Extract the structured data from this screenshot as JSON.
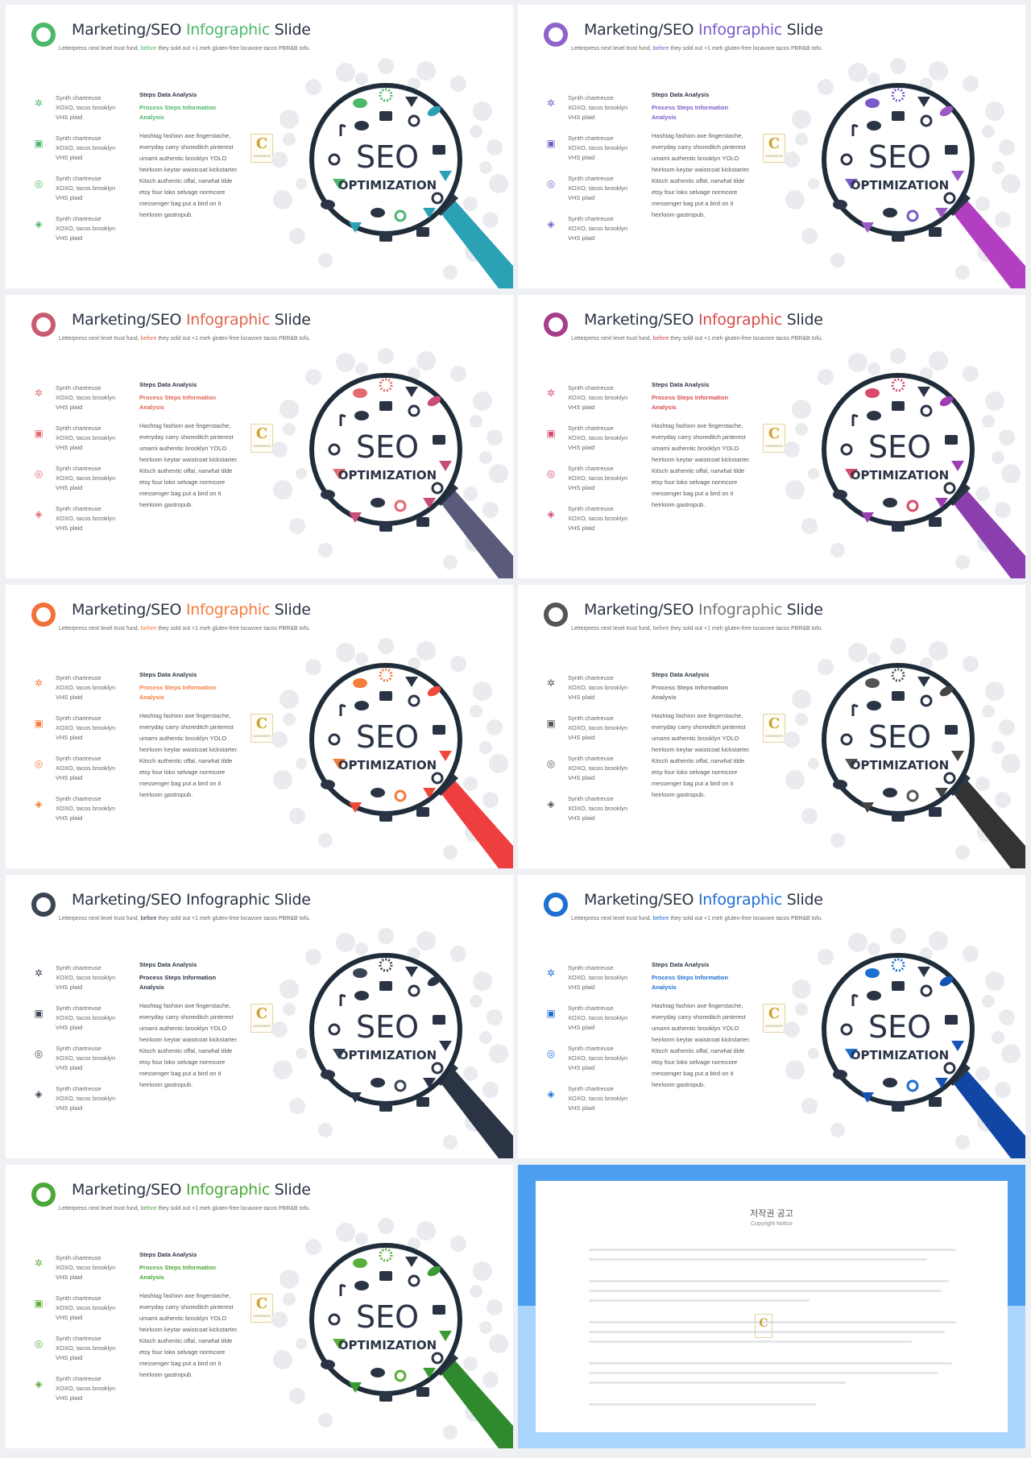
{
  "title_prefix": "Marketing/SEO ",
  "title_highlight": "Infographic",
  "title_suffix": " Slide",
  "subtitle_before": "Letterpress next level trust fund, ",
  "subtitle_highlight": "before",
  "subtitle_after": " they sold out +1 meh gluten-free locavore tacos PBR&B tofu.",
  "features": [
    {
      "icon": "cog-icon",
      "glyph": "✲",
      "lines": [
        "Synth chartreuse",
        "XOXO, tacos brooklyn",
        "VHS plaid"
      ]
    },
    {
      "icon": "presentation-chart-icon",
      "glyph": "▣",
      "lines": [
        "Synth chartreuse",
        "XOXO, tacos brooklyn",
        "VHS plaid"
      ]
    },
    {
      "icon": "target-icon",
      "glyph": "◎",
      "lines": [
        "Synth chartreuse",
        "XOXO, tacos brooklyn",
        "VHS plaid"
      ]
    },
    {
      "icon": "layers-icon",
      "glyph": "◈",
      "lines": [
        "Synth chartreuse",
        "XOXO, tacos brooklyn",
        "VHS plaid"
      ]
    }
  ],
  "steps_title": "Steps Data Analysis",
  "steps_sub": "Process Steps Information Analysis",
  "steps_body": "Hashtag fashion axe fingerstache, everyday carry shoreditch pinterest umami authentic brooklyn YOLO heirloom keytar waistcoat kickstarter. Kitsch authentic offal, narwhal tilde etsy four loko selvage normcore messenger bag put a bird on it heirloom gastropub.",
  "logo_letter": "C",
  "logo_text": "CONTENTS",
  "lens_title": "SEO",
  "lens_subtitle": "OPTIMIZATION",
  "slides": [
    {
      "accent": "#4cb86a",
      "accent2": "#2aa1b5",
      "handle": "#2aa1b5",
      "highlight": "#4cb86a",
      "ring": "#4cb86a"
    },
    {
      "accent": "#7b5bc9",
      "accent2": "#9b59c6",
      "handle": "#b23fc1",
      "highlight": "#7b5bc9",
      "ring": "#8e63cc"
    },
    {
      "accent": "#e36a6f",
      "accent2": "#c84d78",
      "handle": "#5a5a7a",
      "highlight": "#e0654f",
      "ring": "#c85a72"
    },
    {
      "accent": "#d94a6c",
      "accent2": "#9b3fb0",
      "handle": "#8b3fae",
      "highlight": "#d94a4a",
      "ring": "#a63f8b"
    },
    {
      "accent": "#f47c3c",
      "accent2": "#ee4a3a",
      "handle": "#ee3e3e",
      "highlight": "#f47c3c",
      "ring": "#f2703a"
    },
    {
      "accent": "#555555",
      "accent2": "#444444",
      "handle": "#333333",
      "highlight": "#777777",
      "ring": "#555555"
    },
    {
      "accent": "#3a4555",
      "accent2": "#2b3445",
      "handle": "#2b3445",
      "highlight": "#2b3445",
      "ring": "#3a4555"
    },
    {
      "accent": "#1f6fd1",
      "accent2": "#1552b5",
      "handle": "#1146a5",
      "highlight": "#1f6fd1",
      "ring": "#1f6fd1"
    },
    {
      "accent": "#5cae3a",
      "accent2": "#3a9a34",
      "handle": "#2f8a2e",
      "highlight": "#4aa838",
      "ring": "#4aa838"
    }
  ],
  "copyright": {
    "title": "저작권 공고",
    "subtitle": "Copyright Notice",
    "logo_letter": "C"
  }
}
